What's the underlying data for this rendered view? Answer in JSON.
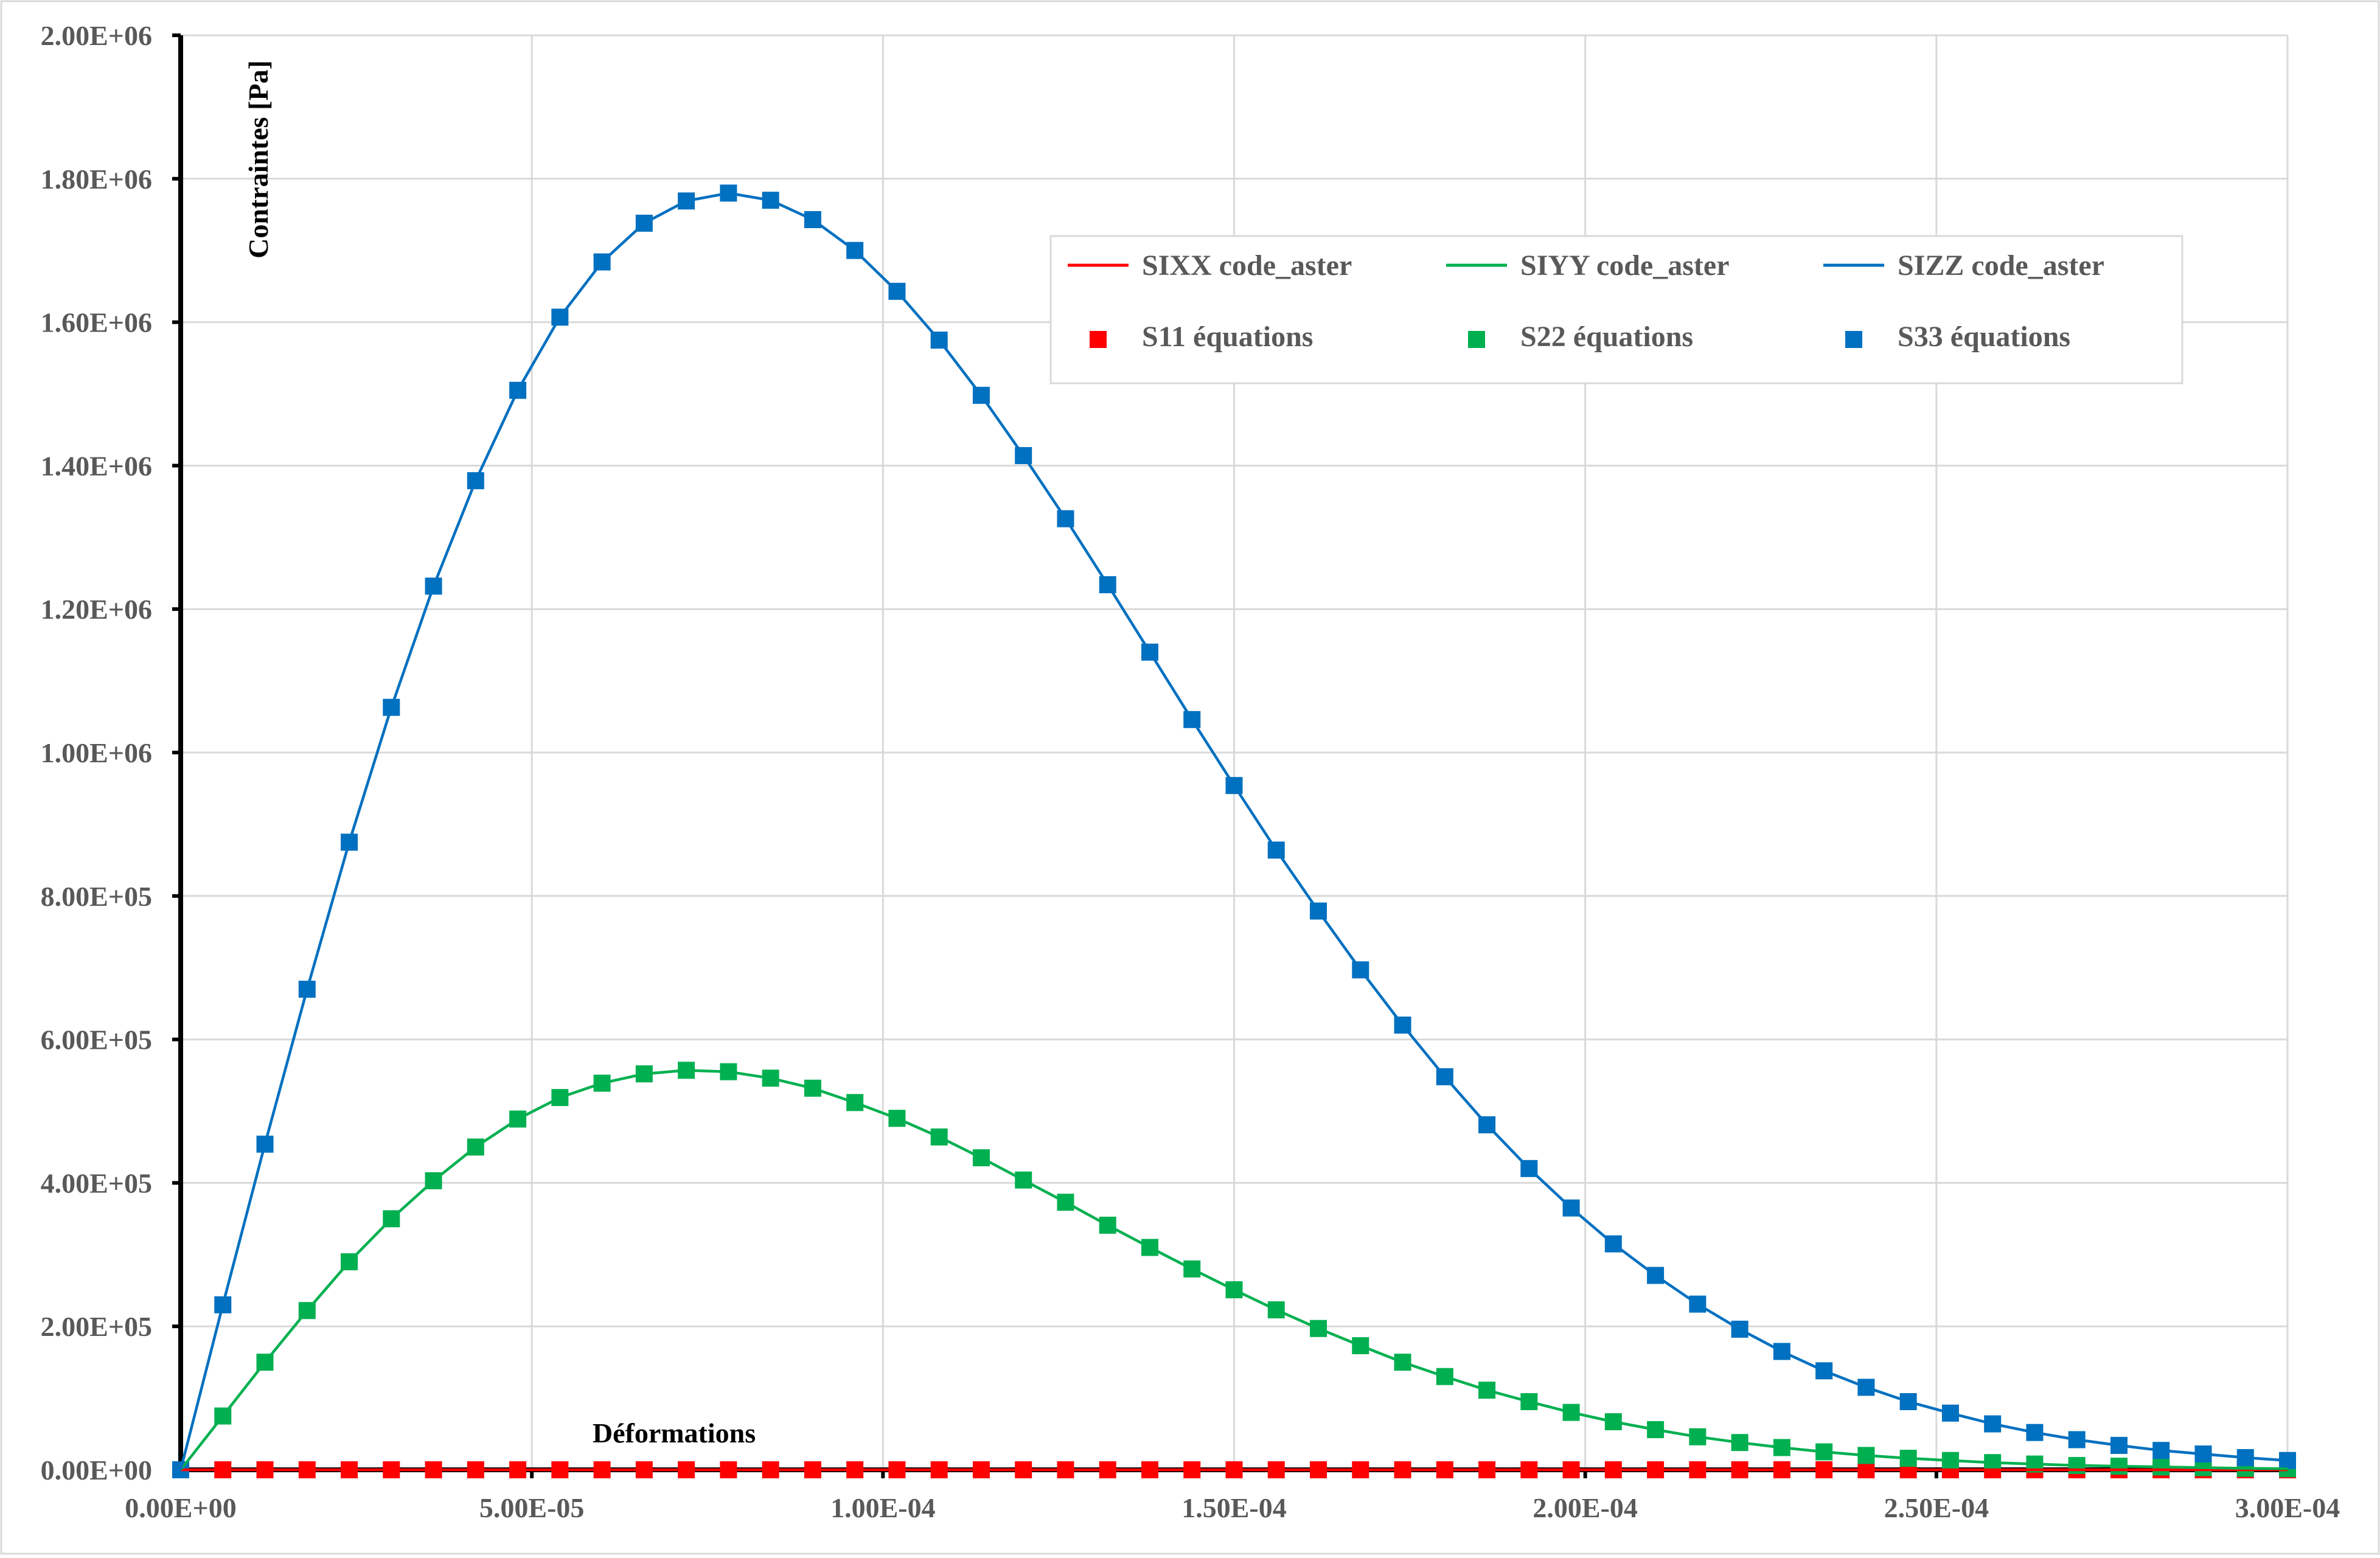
{
  "chart_data": {
    "type": "line",
    "title": "",
    "xlabel": "Déformations",
    "ylabel": "Contraintes [Pa]",
    "xlim": [
      0,
      0.0003
    ],
    "ylim": [
      0,
      2000000
    ],
    "xticks": [
      "0.00E+00",
      "5.00E-05",
      "1.00E-04",
      "1.50E-04",
      "2.00E-04",
      "2.50E-04",
      "3.00E-04"
    ],
    "yticks": [
      "0.00E+00",
      "2.00E+05",
      "4.00E+05",
      "6.00E+05",
      "8.00E+05",
      "1.00E+06",
      "1.20E+06",
      "1.40E+06",
      "1.60E+06",
      "1.80E+06",
      "2.00E+06"
    ],
    "grid": true,
    "legend_position": "top-right",
    "x": [
      0,
      6e-06,
      1.2e-05,
      1.8e-05,
      2.4e-05,
      3e-05,
      3.6e-05,
      4.2e-05,
      4.8e-05,
      5.4e-05,
      6e-05,
      6.6e-05,
      7.2e-05,
      7.8e-05,
      8.4e-05,
      9e-05,
      9.6e-05,
      0.000102,
      0.000108,
      0.000114,
      0.00012,
      0.000126,
      0.000132,
      0.000138,
      0.000144,
      0.00015,
      0.000156,
      0.000162,
      0.000168,
      0.000174,
      0.00018,
      0.000186,
      0.000192,
      0.000198,
      0.000204,
      0.00021,
      0.000216,
      0.000222,
      0.000228,
      0.000234,
      0.00024,
      0.000246,
      0.000252,
      0.000258,
      0.000264,
      0.00027,
      0.000276,
      0.000282,
      0.000288,
      0.000294,
      0.0003
    ],
    "series": [
      {
        "name": "SIXX code_aster",
        "kind": "line",
        "color": "#ff0000",
        "values": [
          0,
          0,
          0,
          0,
          0,
          0,
          0,
          0,
          0,
          0,
          0,
          0,
          0,
          0,
          0,
          0,
          0,
          0,
          0,
          0,
          0,
          0,
          0,
          0,
          0,
          0,
          0,
          0,
          0,
          0,
          0,
          0,
          0,
          0,
          0,
          0,
          0,
          0,
          0,
          0,
          0,
          0,
          0,
          0,
          0,
          0,
          0,
          0,
          0,
          0,
          0
        ]
      },
      {
        "name": "SIYY code_aster",
        "kind": "line",
        "color": "#00b050",
        "values": [
          0,
          75000,
          150000,
          222000,
          290000,
          350000,
          403000,
          450000,
          489000,
          519000,
          539000,
          552000,
          557000,
          555000,
          546000,
          532000,
          512000,
          490000,
          464000,
          435000,
          404000,
          373000,
          341000,
          310000,
          280000,
          251000,
          223000,
          197000,
          173000,
          150000,
          130000,
          111000,
          95000,
          80000,
          67000,
          56000,
          46000,
          38000,
          31000,
          25000,
          20000,
          16000,
          13000,
          10000,
          8000,
          6000,
          5000,
          4000,
          3000,
          2000,
          1500
        ]
      },
      {
        "name": "SIZZ code_aster",
        "kind": "line",
        "color": "#0070c0",
        "values": [
          0,
          230000,
          454000,
          670000,
          875000,
          1063000,
          1232000,
          1379000,
          1505000,
          1607000,
          1684000,
          1738000,
          1769000,
          1780000,
          1770000,
          1743000,
          1700000,
          1643000,
          1575000,
          1498000,
          1414000,
          1326000,
          1234000,
          1140000,
          1046000,
          954000,
          864000,
          779000,
          697000,
          620000,
          548000,
          481000,
          420000,
          365000,
          315000,
          271000,
          231000,
          196000,
          165000,
          138000,
          115000,
          95000,
          79000,
          64000,
          52000,
          42000,
          34000,
          27000,
          22000,
          17000,
          13000
        ]
      },
      {
        "name": "S11 équations",
        "kind": "marker",
        "color": "#ff0000",
        "values": [
          0,
          0,
          0,
          0,
          0,
          0,
          0,
          0,
          0,
          0,
          0,
          0,
          0,
          0,
          0,
          0,
          0,
          0,
          0,
          0,
          0,
          0,
          0,
          0,
          0,
          0,
          0,
          0,
          0,
          0,
          0,
          0,
          0,
          0,
          0,
          0,
          0,
          0,
          0,
          0,
          0,
          0,
          0,
          0,
          0,
          0,
          0,
          0,
          0,
          0,
          0
        ]
      },
      {
        "name": "S22 équations",
        "kind": "marker",
        "color": "#00b050",
        "values": [
          0,
          75000,
          150000,
          222000,
          290000,
          350000,
          403000,
          450000,
          489000,
          519000,
          539000,
          552000,
          557000,
          555000,
          546000,
          532000,
          512000,
          490000,
          464000,
          435000,
          404000,
          373000,
          341000,
          310000,
          280000,
          251000,
          223000,
          197000,
          173000,
          150000,
          130000,
          111000,
          95000,
          80000,
          67000,
          56000,
          46000,
          38000,
          31000,
          25000,
          20000,
          16000,
          13000,
          10000,
          8000,
          6000,
          5000,
          4000,
          3000,
          2000,
          1500
        ]
      },
      {
        "name": "S33 équations",
        "kind": "marker",
        "color": "#0070c0",
        "values": [
          0,
          230000,
          454000,
          670000,
          875000,
          1063000,
          1232000,
          1379000,
          1505000,
          1607000,
          1684000,
          1738000,
          1769000,
          1780000,
          1770000,
          1743000,
          1700000,
          1643000,
          1575000,
          1498000,
          1414000,
          1326000,
          1234000,
          1140000,
          1046000,
          954000,
          864000,
          779000,
          697000,
          620000,
          548000,
          481000,
          420000,
          365000,
          315000,
          271000,
          231000,
          196000,
          165000,
          138000,
          115000,
          95000,
          79000,
          64000,
          52000,
          42000,
          34000,
          27000,
          22000,
          17000,
          13000
        ]
      }
    ]
  }
}
